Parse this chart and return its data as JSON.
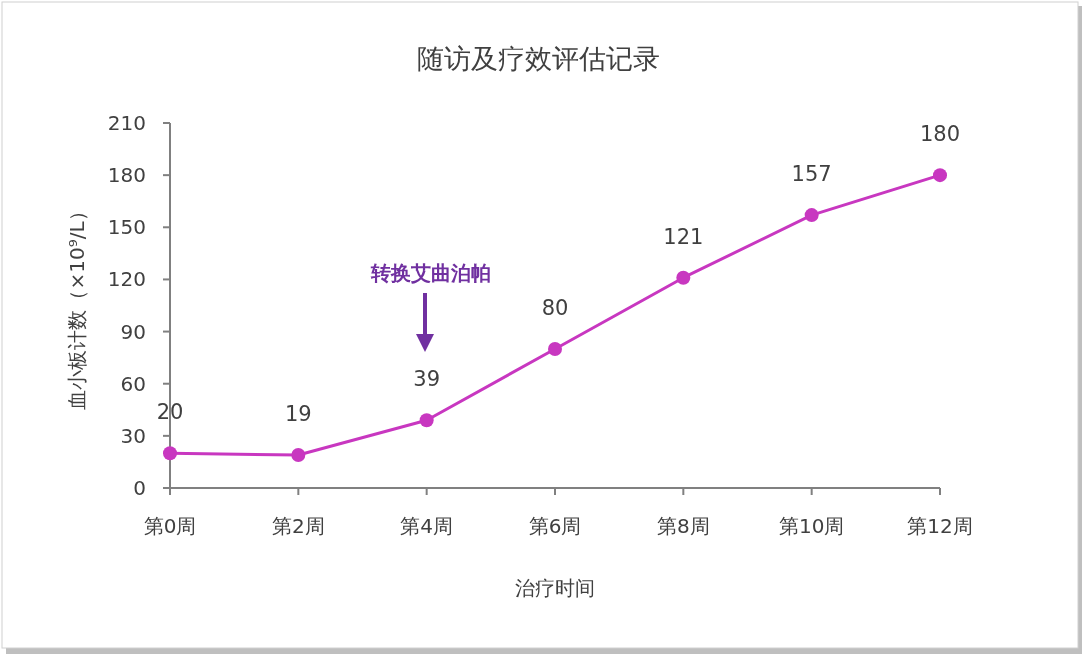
{
  "chart_data": {
    "type": "line",
    "title": "随访及疗效评估记录",
    "xlabel": "治疗时间",
    "ylabel": "血小板计数（×10⁹/L）",
    "categories": [
      "第0周",
      "第2周",
      "第4周",
      "第6周",
      "第8周",
      "第10周",
      "第12周"
    ],
    "series": [
      {
        "color": "#c837c0",
        "values": [
          20,
          19,
          39,
          80,
          121,
          157,
          180
        ]
      }
    ],
    "ylim": [
      0,
      210
    ],
    "yticks": [
      0,
      30,
      60,
      90,
      120,
      150,
      180,
      210
    ],
    "annotations": [
      "转换艾曲泊帕"
    ],
    "data_labels": true,
    "grid": false,
    "marker": "circle",
    "line_style": "solid"
  }
}
